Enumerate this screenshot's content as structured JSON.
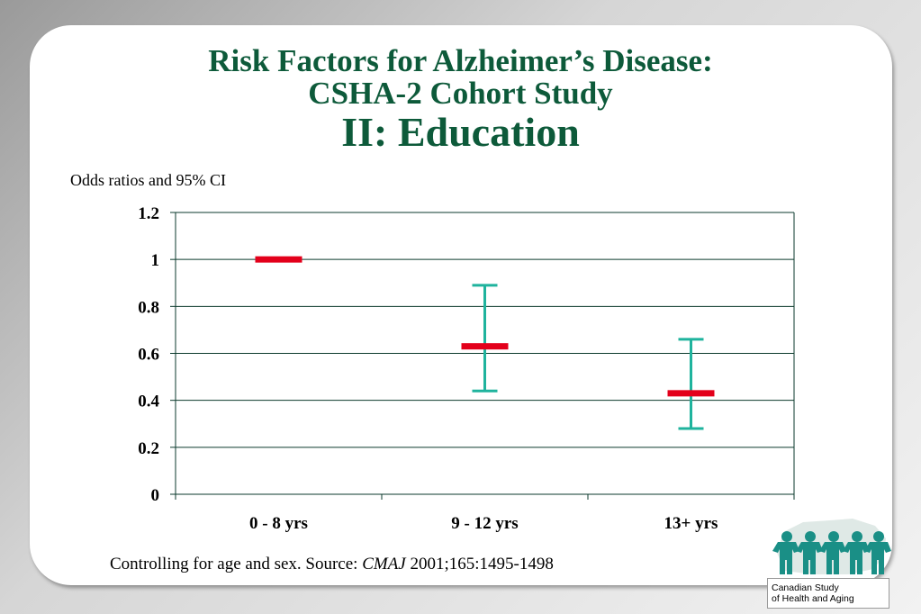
{
  "title": {
    "line1": "Risk Factors for Alzheimer’s Disease:",
    "line2": "CSHA-2 Cohort Study",
    "line3": "II:  Education"
  },
  "y_caption": "Odds ratios and 95% CI",
  "footnote": {
    "text": "Controlling for age and sex.  Source: ",
    "journal": "CMAJ",
    "citation": "  2001;165:1495-1498"
  },
  "logo": {
    "line1": "Canadian Study",
    "line2": "of Health and Aging"
  },
  "colors": {
    "title": "#0d5a3a",
    "point": "#e3001b",
    "ci": "#1fb39d",
    "axis": "#0b3a2c"
  },
  "chart_data": {
    "type": "scatter",
    "categories": [
      "0 - 8 yrs",
      "9 - 12 yrs",
      "13+ yrs"
    ],
    "series": [
      {
        "values": [
          1.0,
          0.63,
          0.43
        ],
        "ci_low": [
          null,
          0.44,
          0.28
        ],
        "ci_high": [
          null,
          0.89,
          0.66
        ]
      }
    ],
    "ylim": [
      0,
      1.2
    ],
    "yticks": [
      "0",
      "0.2",
      "0.4",
      "0.6",
      "0.8",
      "1",
      "1.2"
    ],
    "ytick_values": [
      0,
      0.2,
      0.4,
      0.6,
      0.8,
      1.0,
      1.2
    ],
    "grid": true,
    "ylabel": "Odds ratios and 95% CI"
  }
}
